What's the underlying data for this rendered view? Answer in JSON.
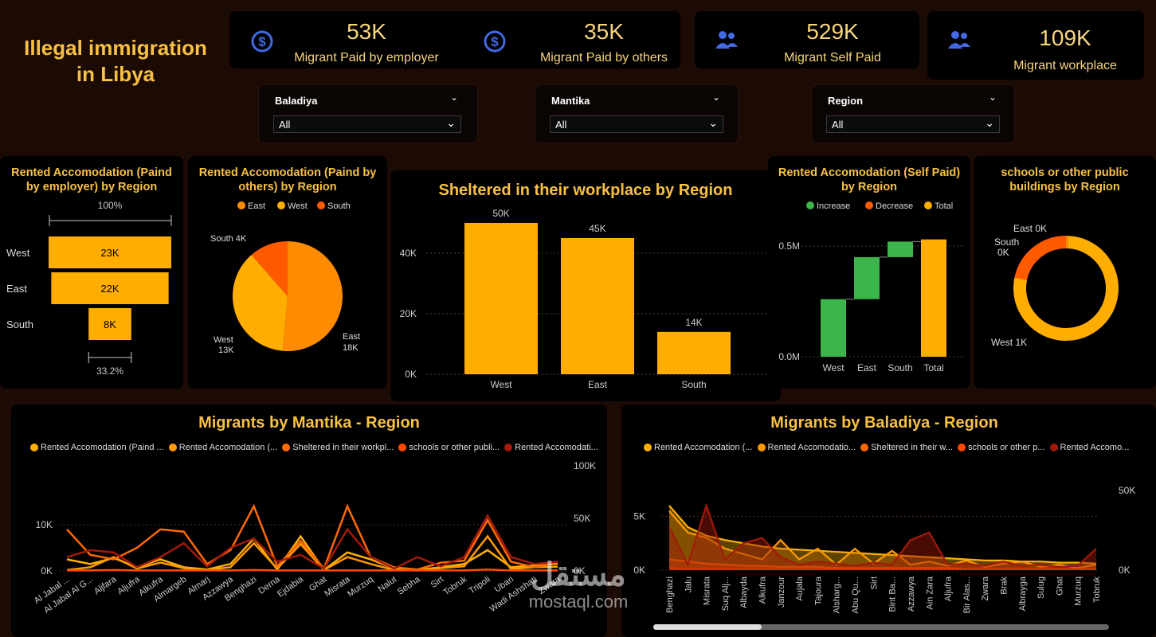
{
  "page_title": "Illegal immigration in Libya",
  "kpis": [
    {
      "value": "53K",
      "label": "Migrant Paid by employer",
      "icon": "dollar-icon"
    },
    {
      "value": "35K",
      "label": "Migrant Paid by others",
      "icon": "dollar-icon"
    },
    {
      "value": "529K",
      "label": "Migrant Self Paid",
      "icon": "people-icon"
    },
    {
      "value": "109K",
      "label": "Migrant workplace",
      "icon": "people-icon"
    }
  ],
  "filters": [
    {
      "label": "Baladiya",
      "value": "All"
    },
    {
      "label": "Mantika",
      "value": "All"
    },
    {
      "label": "Region",
      "value": "All"
    }
  ],
  "colors": {
    "accent": "#f7c143",
    "bar": "#ffad00",
    "orange": "#ff8c00",
    "red": "#ff5a00",
    "dark_red": "#a11a0a",
    "green": "#3cb54a"
  },
  "watermark": {
    "text_ar": "مستقل",
    "text_en": "mostaql.com"
  },
  "chart_data": [
    {
      "id": "funnel",
      "type": "bar",
      "title": "Rented Accomodation (Paind by employer) by Region",
      "categories": [
        "West",
        "East",
        "South"
      ],
      "values": [
        23,
        22,
        8
      ],
      "value_labels": [
        "23K",
        "22K",
        "8K"
      ],
      "top_label": "100%",
      "bottom_label": "33.2%"
    },
    {
      "id": "pie",
      "type": "pie",
      "title": "Rented Accomodation (Paind by others) by Region",
      "legend": [
        "East",
        "West",
        "South"
      ],
      "categories": [
        "East",
        "West",
        "South"
      ],
      "values": [
        18,
        13,
        4
      ],
      "value_labels": [
        "18K",
        "13K",
        "4K"
      ]
    },
    {
      "id": "workplace",
      "type": "bar",
      "title": "Sheltered in their workplace by Region",
      "categories": [
        "West",
        "East",
        "South"
      ],
      "values": [
        50,
        45,
        14
      ],
      "value_labels": [
        "50K",
        "45K",
        "14K"
      ],
      "y_ticks": [
        "0K",
        "20K",
        "40K"
      ],
      "ylim": [
        0,
        50
      ]
    },
    {
      "id": "waterfall",
      "type": "bar",
      "title": "Rented Accomodation (Self Paid) by Region",
      "legend": [
        "Increase",
        "Decrease",
        "Total"
      ],
      "categories": [
        "West",
        "East",
        "South",
        "Total"
      ],
      "values": [
        0.26,
        0.19,
        0.07,
        0.53
      ],
      "y_ticks": [
        "0.0M",
        "0.5M"
      ]
    },
    {
      "id": "donut",
      "type": "pie",
      "title": "schools or other public buildings by Region",
      "categories": [
        "West",
        "South",
        "East"
      ],
      "values": [
        1.0,
        0.28,
        0.01
      ],
      "value_labels": [
        "West 1K",
        "South 0K",
        "East 0K"
      ]
    },
    {
      "id": "mantika",
      "type": "line",
      "title": "Migrants by Mantika - Region",
      "legend": [
        "Rented Accomodation (Paind ...",
        "Rented Accomodation (...",
        "Sheltered in their workpl...",
        "schools or other publi...",
        "Rented Accomodati..."
      ],
      "categories": [
        "Al Jabal ...",
        "Al Jabal Al G...",
        "Aljfara",
        "Aljufra",
        "Alkufra",
        "Almargeb",
        "Almarj",
        "Azzawya",
        "Benghazi",
        "Derna",
        "Ejdabia",
        "Ghat",
        "Misrata",
        "Murzuq",
        "Nalut",
        "Sebha",
        "Sirt",
        "Tobruk",
        "Tripoli",
        "Ubari",
        "Wadi Ashshati",
        "Zwara"
      ],
      "left_ticks": [
        "0K",
        "10K"
      ],
      "right_ticks": [
        "0K",
        "50K",
        "100K"
      ],
      "series": [
        {
          "name": "Rented Accomodation (Paind ...",
          "values": [
            2.5,
            1.5,
            2.8,
            0.8,
            2.5,
            0.8,
            0.3,
            1.5,
            7.0,
            0.3,
            7.5,
            0.2,
            4.0,
            2.5,
            0.5,
            0.2,
            0.8,
            1.5,
            4.5,
            0.8,
            1.2,
            1.5
          ]
        },
        {
          "name": "Rented Accomodation (...",
          "values": [
            0.2,
            0.8,
            3.0,
            0.5,
            1.8,
            0.6,
            0.2,
            0.8,
            6.0,
            0.5,
            5.8,
            0.2,
            3.0,
            1.5,
            0.2,
            0.1,
            0.6,
            1.0,
            7.5,
            0.4,
            0.8,
            0.9
          ]
        },
        {
          "name": "Sheltered in their workpl...",
          "values": [
            9.0,
            3.5,
            2.5,
            5.0,
            9.0,
            8.5,
            1.5,
            4.5,
            14.0,
            1.0,
            6.5,
            0.5,
            14.0,
            3.0,
            0.8,
            0.3,
            1.8,
            2.2,
            11.0,
            2.0,
            0.8,
            1.8
          ]
        },
        {
          "name": "schools or other publi...",
          "values": [
            0.1,
            0.1,
            0.2,
            0.1,
            0.1,
            0.1,
            0.1,
            0.1,
            0.2,
            0.1,
            0.1,
            0.1,
            0.1,
            0.1,
            0.1,
            0.1,
            0.1,
            0.1,
            0.3,
            0.1,
            0.1,
            0.1
          ]
        },
        {
          "name": "Rented Accomodati...",
          "values": [
            3.0,
            4.5,
            4.0,
            0.8,
            3.0,
            6.0,
            1.0,
            5.0,
            7.0,
            2.0,
            3.5,
            0.5,
            9.0,
            3.0,
            0.5,
            3.0,
            1.0,
            3.0,
            12.0,
            3.0,
            1.5,
            2.0
          ]
        }
      ]
    },
    {
      "id": "baladiya",
      "type": "area",
      "title": "Migrants by Baladiya - Region",
      "legend": [
        "Rented Accomodation (...",
        "Rented Accomodatio...",
        "Sheltered in their w...",
        "schools or other p...",
        "Rented Accomo..."
      ],
      "categories": [
        "Benghazi",
        "Jalu",
        "Misrata",
        "Suq Alj...",
        "Albayda",
        "Alkufra",
        "Janzour",
        "Aujala",
        "Tajoura",
        "Alsharg...",
        "Abu Qu...",
        "Sirt",
        "Bint Ba...",
        "Azzawya",
        "Ain Zara",
        "Aljufra",
        "Bir Alas...",
        "Zwara",
        "Brak",
        "Albrayga",
        "Sulug",
        "Ghat",
        "Murzuq",
        "Tobruk"
      ],
      "left_ticks": [
        "0K",
        "5K"
      ],
      "right_ticks": [
        "0K",
        "50K"
      ],
      "series": [
        {
          "name": "Rented Accomodation (...",
          "values": [
            6.0,
            4.0,
            3.2,
            2.8,
            2.5,
            2.2,
            2.0,
            1.9,
            1.8,
            1.7,
            1.6,
            1.5,
            1.4,
            1.3,
            1.2,
            1.1,
            1.0,
            0.9,
            0.9,
            0.8,
            0.8,
            0.7,
            0.7,
            0.6
          ]
        },
        {
          "name": "Rented Accomodatio...",
          "values": [
            5.5,
            3.5,
            3.0,
            2.0,
            1.5,
            1.0,
            2.8,
            1.0,
            2.0,
            0.5,
            2.0,
            0.6,
            1.8,
            0.5,
            0.8,
            0.4,
            0.9,
            0.3,
            0.6,
            0.8,
            0.3,
            0.5,
            0.2,
            0.5
          ]
        },
        {
          "name": "Sheltered in their w...",
          "values": [
            1.0,
            0.8,
            0.6,
            0.5,
            0.4,
            0.4,
            0.3,
            0.3,
            0.3,
            0.2,
            0.2,
            0.2,
            0.2,
            0.2,
            0.2,
            0.2,
            0.1,
            0.1,
            0.1,
            0.1,
            0.1,
            0.1,
            0.1,
            0.1
          ]
        },
        {
          "name": "schools or other p...",
          "values": [
            0.2,
            0.1,
            0.1,
            0.1,
            0.1,
            0.1,
            0.1,
            0.1,
            0.1,
            0.1,
            0.1,
            0.1,
            0.1,
            0.1,
            0.1,
            0.1,
            0.1,
            0.1,
            0.1,
            0.1,
            0.1,
            0.1,
            0.1,
            0.1
          ]
        },
        {
          "name": "Rented Accomo...",
          "values": [
            4.0,
            0.5,
            6.0,
            1.0,
            2.5,
            3.0,
            1.2,
            0.5,
            0.8,
            0.6,
            0.4,
            0.7,
            0.5,
            2.8,
            3.5,
            0.5,
            0.6,
            0.4,
            0.8,
            0.4,
            0.5,
            0.3,
            0.4,
            2.0
          ]
        }
      ]
    }
  ]
}
